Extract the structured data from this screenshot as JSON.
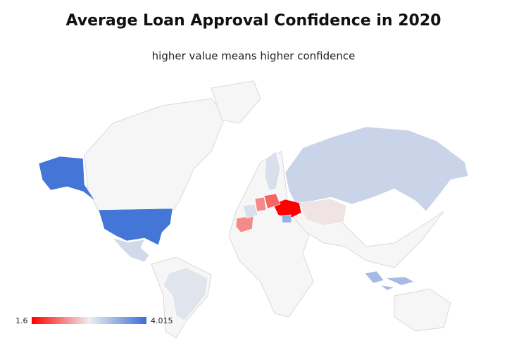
{
  "chart_data": {
    "type": "choropleth",
    "title": "Average Loan Approval Confidence in 2020",
    "subtitle": "higher value means higher confidence",
    "values": [
      3.95,
      3.0,
      2.9,
      3.05,
      2.75,
      1.6,
      2.1,
      2.3,
      2.3,
      2.95,
      3.4,
      3.3,
      2.95
    ],
    "range": [
      1.6,
      4.015
    ],
    "colors": [
      "#ff0000",
      "#eeeeee",
      "#3a6fd6"
    ]
  }
}
